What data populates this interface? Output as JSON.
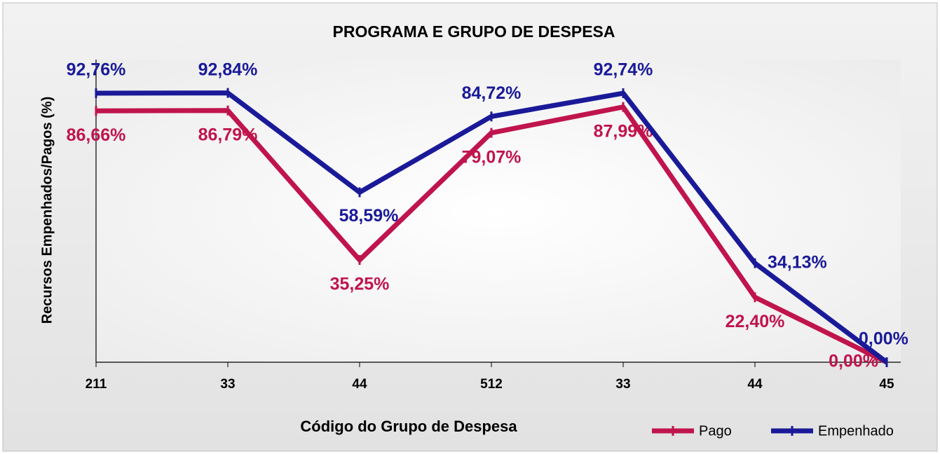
{
  "chart_data": {
    "type": "line",
    "title": "PROGRAMA E GRUPO DE DESPESA",
    "x_label": "Código do Grupo de Despesa",
    "y_label": "Recursos Empenhados/Pagos (%)",
    "categories": [
      "211",
      "33",
      "44",
      "512",
      "33",
      "44",
      "45"
    ],
    "ylim": [
      0,
      100
    ],
    "legend": "bottom-right",
    "series": [
      {
        "name": "Pago",
        "color": "#c0144c",
        "values": [
          86.66,
          86.79,
          35.25,
          79.07,
          87.99,
          22.4,
          0
        ],
        "value_labels": [
          "86,66%",
          "86,79%",
          "35,25%",
          "79,07%",
          "87,99%",
          "22,40%",
          "0,00%"
        ]
      },
      {
        "name": "Empenhado",
        "color": "#1a1a99",
        "values": [
          92.76,
          92.84,
          58.59,
          84.72,
          92.74,
          34.13,
          0
        ],
        "value_labels": [
          "92,76%",
          "92,84%",
          "58,59%",
          "84,72%",
          "92,74%",
          "34,13%",
          "0,00%"
        ]
      }
    ]
  }
}
